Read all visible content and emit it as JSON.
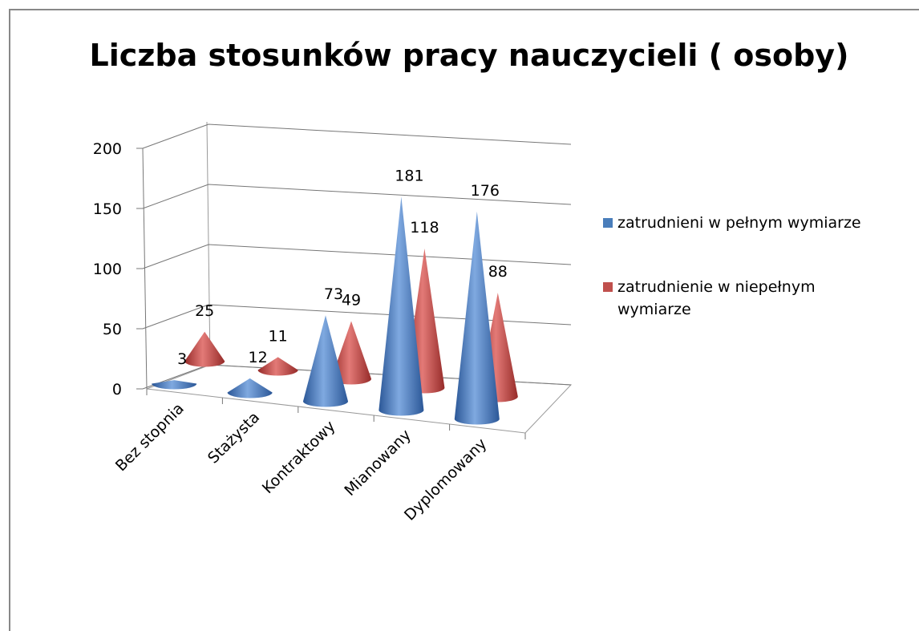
{
  "chart_data": {
    "type": "cone",
    "title": "Liczba stosunków pracy nauczycieli ( osoby)",
    "categories": [
      "Bez stopnia",
      "Stażysta",
      "Kontraktowy",
      "Mianowany",
      "Dyplomowany"
    ],
    "series": [
      {
        "name": "zatrudnieni w pełnym wymiarze",
        "color": "#4a7ebb",
        "values": [
          3,
          12,
          73,
          181,
          176
        ]
      },
      {
        "name": "zatrudnienie w niepełnym wymiarze",
        "color": "#c0504d",
        "values": [
          25,
          11,
          49,
          118,
          88
        ]
      }
    ],
    "ylim": [
      0,
      200
    ],
    "yticks": [
      0,
      50,
      100,
      150,
      200
    ],
    "grid": true,
    "legend": "right"
  }
}
